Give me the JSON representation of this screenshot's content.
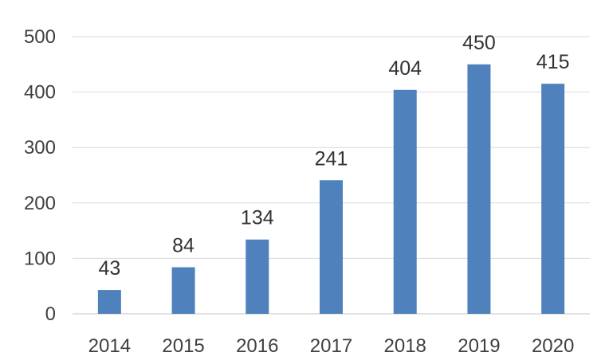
{
  "chart_data": {
    "type": "bar",
    "title": "",
    "xlabel": "",
    "ylabel": "",
    "categories": [
      "2014",
      "2015",
      "2016",
      "2017",
      "2018",
      "2019",
      "2020"
    ],
    "values": [
      43,
      84,
      134,
      241,
      404,
      450,
      415
    ],
    "data_labels": [
      "43",
      "84",
      "134",
      "241",
      "404",
      "450",
      "415"
    ],
    "ylim": [
      0,
      500
    ],
    "yticks": [
      "0",
      "100",
      "200",
      "300",
      "400",
      "500"
    ],
    "grid": "horizontal",
    "legend": "none",
    "bar_color": "#4f81bd",
    "grid_color": "#d9d9d9"
  }
}
